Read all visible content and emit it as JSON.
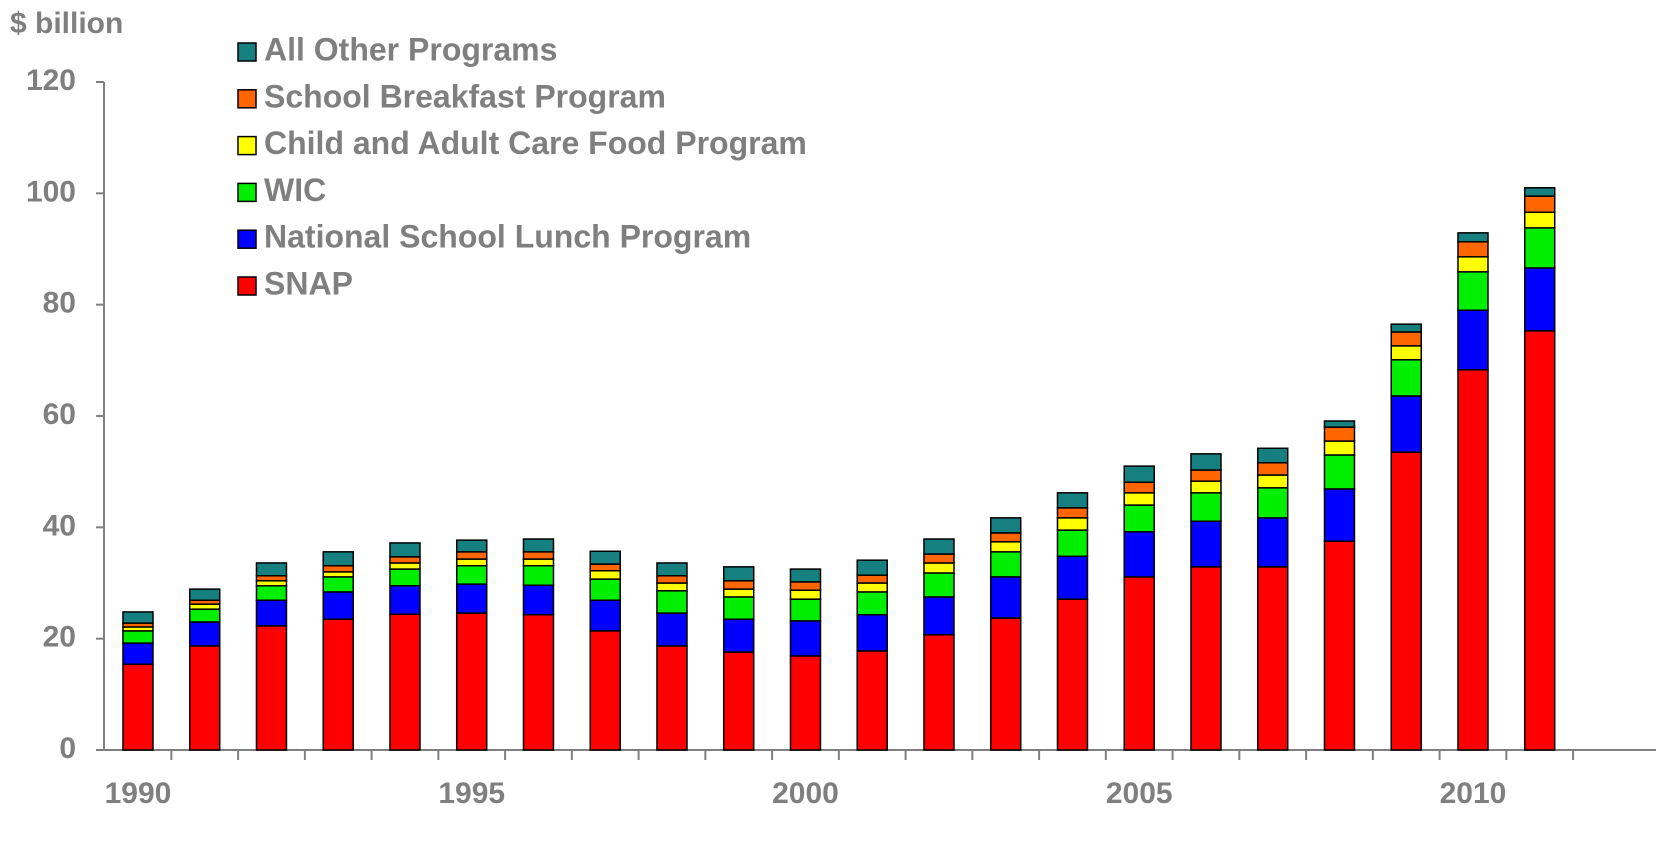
{
  "chart_data": {
    "type": "stacked_bar",
    "y_label": "$ billion",
    "categories": [
      "1990",
      null,
      null,
      null,
      null,
      "1995",
      null,
      null,
      null,
      null,
      "2000",
      null,
      null,
      null,
      null,
      "2005",
      null,
      null,
      null,
      null,
      "2010",
      null
    ],
    "series": [
      {
        "name": "SNAP",
        "color": "#ff0000",
        "values": [
          15.4,
          18.7,
          22.3,
          23.5,
          24.4,
          24.6,
          24.3,
          21.4,
          18.7,
          17.6,
          16.9,
          17.8,
          20.7,
          23.7,
          27.1,
          31.1,
          32.9,
          32.9,
          37.5,
          53.5,
          68.3,
          75.3
        ]
      },
      {
        "name": "National School Lunch Program",
        "color": "#0000ff",
        "values": [
          3.8,
          4.3,
          4.6,
          4.9,
          5.1,
          5.2,
          5.3,
          5.5,
          5.9,
          5.9,
          6.3,
          6.5,
          6.8,
          7.4,
          7.7,
          8.1,
          8.2,
          8.8,
          9.4,
          10.1,
          10.7,
          11.3
        ]
      },
      {
        "name": "WIC",
        "color": "#00ee00",
        "values": [
          2.2,
          2.3,
          2.6,
          2.7,
          3.0,
          3.3,
          3.5,
          3.8,
          4.0,
          4.0,
          3.9,
          4.1,
          4.3,
          4.5,
          4.7,
          4.8,
          5.1,
          5.4,
          6.1,
          6.5,
          6.9,
          7.2
        ]
      },
      {
        "name": "Child and Adult Care Food Program",
        "color": "#ffff00",
        "values": [
          0.7,
          0.9,
          0.9,
          0.9,
          1.1,
          1.2,
          1.2,
          1.5,
          1.4,
          1.4,
          1.6,
          1.6,
          1.8,
          1.8,
          2.2,
          2.2,
          2.1,
          2.3,
          2.5,
          2.5,
          2.7,
          2.8
        ]
      },
      {
        "name": "School Breakfast Program",
        "color": "#ff6600",
        "values": [
          0.7,
          0.7,
          0.9,
          1.1,
          1.1,
          1.3,
          1.3,
          1.2,
          1.3,
          1.5,
          1.5,
          1.4,
          1.6,
          1.6,
          1.8,
          1.9,
          2.0,
          2.2,
          2.5,
          2.5,
          2.7,
          2.9
        ]
      },
      {
        "name": "All Other Programs",
        "color": "#168080",
        "values": [
          2.0,
          2.0,
          2.3,
          2.5,
          2.5,
          2.1,
          2.3,
          2.3,
          2.3,
          2.5,
          2.3,
          2.7,
          2.7,
          2.7,
          2.7,
          2.9,
          2.9,
          2.6,
          1.1,
          1.4,
          1.6,
          1.5
        ]
      }
    ],
    "ylim": [
      0,
      120
    ],
    "yticks": [
      0,
      20,
      40,
      60,
      80,
      100,
      120
    ]
  }
}
